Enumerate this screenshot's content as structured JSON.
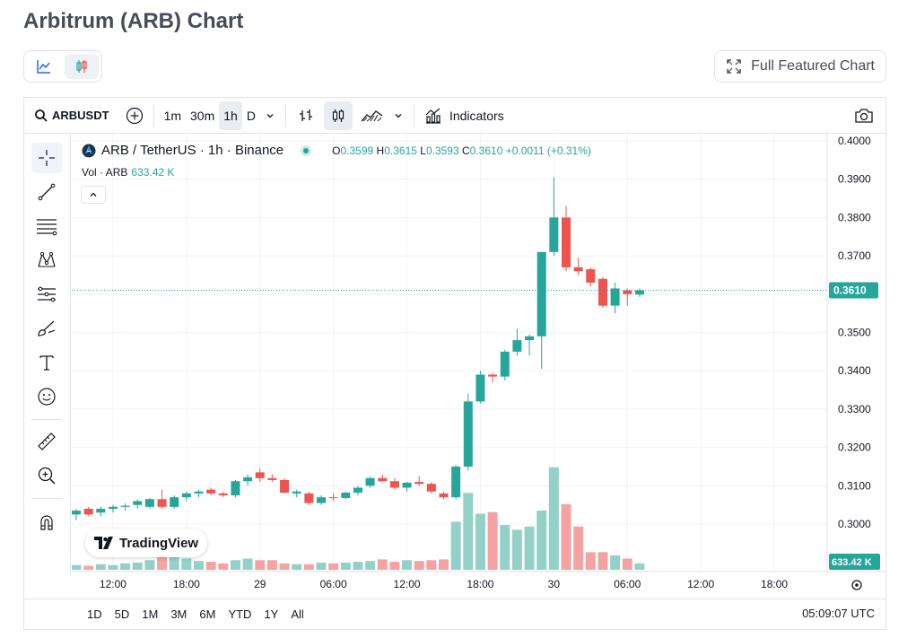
{
  "page": {
    "title": "Arbitrum (ARB) Chart",
    "full_chart_label": "Full Featured Chart"
  },
  "toolbar": {
    "symbol": "ARBUSDT",
    "intervals": [
      "1m",
      "30m",
      "1h",
      "D"
    ],
    "active_interval": "1h",
    "indicators_label": "Indicators"
  },
  "legend": {
    "title": "ARB / TetherUS · 1h · Binance",
    "o_label": "O",
    "o": "0.3599",
    "h_label": "H",
    "h": "0.3615",
    "l_label": "L",
    "l": "0.3593",
    "c_label": "C",
    "c": "0.3610",
    "change": "+0.0011 (+0.31%)",
    "vol_label": "Vol · ARB",
    "vol_value": "633.42 K"
  },
  "branding": {
    "logo_text": "TradingView"
  },
  "bottom": {
    "ranges": [
      "1D",
      "5D",
      "1M",
      "3M",
      "6M",
      "YTD",
      "1Y",
      "All"
    ],
    "clock": "05:09:07 UTC"
  },
  "colors": {
    "up": "#26a69a",
    "down": "#ef5350",
    "vol_up": "#93d1c8",
    "vol_down": "#f4a3a2"
  },
  "chart_data": {
    "type": "candlestick",
    "price_ticks": [
      "0.4000",
      "0.3900",
      "0.3800",
      "0.3700",
      "0.3600",
      "0.3500",
      "0.3400",
      "0.3300",
      "0.3200",
      "0.3100",
      "0.3000"
    ],
    "price_range": [
      0.2965,
      0.4
    ],
    "time_ticks": [
      {
        "label": "12:00",
        "index": 3
      },
      {
        "label": "18:00",
        "index": 9
      },
      {
        "label": "29",
        "index": 15
      },
      {
        "label": "06:00",
        "index": 21
      },
      {
        "label": "12:00",
        "index": 27
      },
      {
        "label": "18:00",
        "index": 33
      },
      {
        "label": "30",
        "index": 39
      },
      {
        "label": "06:00",
        "index": 45
      },
      {
        "label": "12:00",
        "index": 51
      },
      {
        "label": "18:00",
        "index": 57
      }
    ],
    "last_price": "0.3610",
    "last_price_value": 0.361,
    "last_volume": "633.42 K",
    "volume_max": 7000,
    "candles": [
      [
        0.3025,
        0.304,
        0.301,
        0.3035,
        300
      ],
      [
        0.304,
        0.3045,
        0.302,
        0.3025,
        250
      ],
      [
        0.303,
        0.3045,
        0.302,
        0.304,
        350
      ],
      [
        0.304,
        0.305,
        0.303,
        0.3045,
        300
      ],
      [
        0.3045,
        0.3055,
        0.3035,
        0.3048,
        400
      ],
      [
        0.305,
        0.3065,
        0.304,
        0.306,
        450
      ],
      [
        0.3045,
        0.3068,
        0.304,
        0.3065,
        600
      ],
      [
        0.3065,
        0.309,
        0.304,
        0.3045,
        1100
      ],
      [
        0.3045,
        0.3075,
        0.304,
        0.307,
        850
      ],
      [
        0.307,
        0.3085,
        0.306,
        0.308,
        700
      ],
      [
        0.308,
        0.309,
        0.307,
        0.3085,
        550
      ],
      [
        0.309,
        0.3095,
        0.3075,
        0.308,
        500
      ],
      [
        0.308,
        0.3085,
        0.307,
        0.3075,
        400
      ],
      [
        0.3075,
        0.3115,
        0.307,
        0.3112,
        600
      ],
      [
        0.3112,
        0.313,
        0.31,
        0.3122,
        700
      ],
      [
        0.3135,
        0.3145,
        0.311,
        0.312,
        600
      ],
      [
        0.312,
        0.313,
        0.311,
        0.3115,
        600
      ],
      [
        0.3115,
        0.312,
        0.308,
        0.3082,
        400
      ],
      [
        0.308,
        0.309,
        0.307,
        0.3085,
        350
      ],
      [
        0.308,
        0.3085,
        0.305,
        0.3055,
        350
      ],
      [
        0.3055,
        0.3075,
        0.305,
        0.307,
        450
      ],
      [
        0.307,
        0.308,
        0.306,
        0.3068,
        400
      ],
      [
        0.3068,
        0.3085,
        0.3065,
        0.3082,
        450
      ],
      [
        0.3082,
        0.31,
        0.3075,
        0.3095,
        500
      ],
      [
        0.31,
        0.3125,
        0.3095,
        0.312,
        550
      ],
      [
        0.312,
        0.313,
        0.311,
        0.3112,
        650
      ],
      [
        0.3112,
        0.312,
        0.309,
        0.3095,
        500
      ],
      [
        0.3095,
        0.311,
        0.3085,
        0.3108,
        600
      ],
      [
        0.311,
        0.3125,
        0.31,
        0.3105,
        550
      ],
      [
        0.3105,
        0.311,
        0.308,
        0.3085,
        600
      ],
      [
        0.308,
        0.3085,
        0.3065,
        0.307,
        650
      ],
      [
        0.307,
        0.3155,
        0.3065,
        0.315,
        3000
      ],
      [
        0.315,
        0.334,
        0.314,
        0.332,
        4800
      ],
      [
        0.332,
        0.34,
        0.3315,
        0.339,
        3500
      ],
      [
        0.339,
        0.3395,
        0.337,
        0.3385,
        3600
      ],
      [
        0.3385,
        0.3455,
        0.3375,
        0.345,
        2800
      ],
      [
        0.345,
        0.351,
        0.344,
        0.348,
        2500
      ],
      [
        0.348,
        0.3495,
        0.344,
        0.349,
        2700
      ],
      [
        0.349,
        0.371,
        0.3405,
        0.371,
        3700
      ],
      [
        0.371,
        0.3905,
        0.37,
        0.38,
        6400
      ],
      [
        0.38,
        0.383,
        0.366,
        0.367,
        4100
      ],
      [
        0.367,
        0.3695,
        0.365,
        0.366,
        2700
      ],
      [
        0.3665,
        0.367,
        0.362,
        0.363,
        1100
      ],
      [
        0.364,
        0.3645,
        0.3565,
        0.357,
        1100
      ],
      [
        0.357,
        0.363,
        0.355,
        0.3615,
        900
      ],
      [
        0.361,
        0.3615,
        0.357,
        0.36,
        700
      ],
      [
        0.3599,
        0.3615,
        0.3593,
        0.361,
        400
      ]
    ]
  }
}
